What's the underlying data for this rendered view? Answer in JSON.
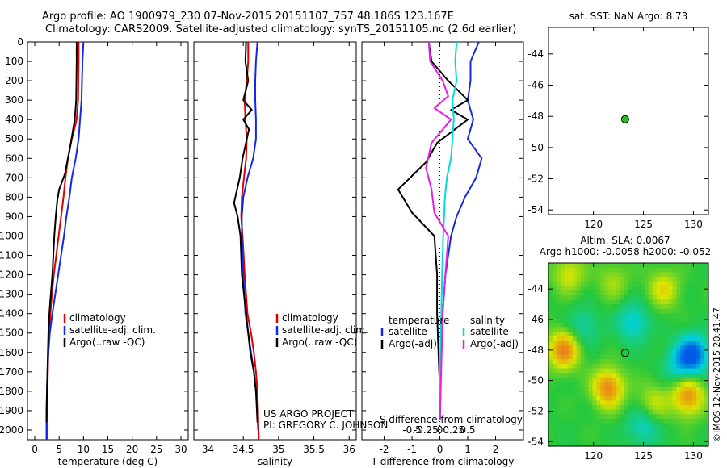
{
  "header": {
    "line1": "Argo profile: AO 1900979_230 07-Nov-2015 20151107_757 48.186S 123.167E",
    "line2": "Climatology: CARS2009. Satellite-adjusted climatology: synTS_20151105.nc (2.6d earlier)"
  },
  "colors": {
    "climatology": "#e00000",
    "satellite": "#1428e6",
    "argo": "#000000",
    "salinity_sat": "#00dcdc",
    "salinity_argo": "#e61ee6",
    "float_marker": "#22c422"
  },
  "chart_data": [
    {
      "type": "line",
      "name": "temperature-profile",
      "xlabel": "temperature (deg C)",
      "ylabel": "",
      "xlim": [
        -1.5,
        31.5
      ],
      "ylim": [
        2050,
        0
      ],
      "xticks": [
        0,
        5,
        10,
        15,
        20,
        25,
        30
      ],
      "yticks": [
        0,
        100,
        200,
        300,
        400,
        500,
        600,
        700,
        800,
        900,
        1000,
        1100,
        1200,
        1300,
        1400,
        1500,
        1600,
        1700,
        1800,
        1900,
        2000
      ],
      "legend": [
        "climatology",
        "satellite-adj. clim.",
        "Argo(..raw -QC)"
      ],
      "series": [
        {
          "name": "climatology",
          "color": "#e00000",
          "x": [
            9.0,
            9.0,
            8.9,
            8.6,
            7.6,
            6.8,
            6.3,
            5.9,
            5.4,
            4.9,
            4.4,
            3.9,
            3.5,
            3.2,
            3.0,
            2.8,
            2.7,
            2.6,
            2.5,
            2.5
          ],
          "y": [
            0,
            100,
            300,
            400,
            500,
            600,
            700,
            800,
            900,
            1000,
            1100,
            1200,
            1300,
            1400,
            1500,
            1600,
            1700,
            1800,
            1900,
            2050
          ]
        },
        {
          "name": "satellite-adj. clim.",
          "color": "#1428e6",
          "x": [
            10.0,
            9.8,
            9.6,
            9.3,
            9.0,
            8.4,
            7.6,
            7.1,
            6.5,
            6.0,
            5.4,
            4.8,
            4.2,
            3.6,
            3.1,
            2.8,
            2.6,
            2.5,
            2.4,
            2.4
          ],
          "y": [
            0,
            100,
            300,
            400,
            500,
            600,
            700,
            800,
            900,
            1000,
            1100,
            1200,
            1300,
            1400,
            1500,
            1600,
            1700,
            1800,
            1900,
            2050
          ]
        },
        {
          "name": "Argo(..raw -QC)",
          "color": "#000000",
          "x": [
            8.6,
            8.6,
            8.5,
            8.2,
            7.4,
            6.2,
            5.0,
            4.6,
            4.3,
            4.0,
            3.8,
            3.6,
            3.3,
            3.0,
            2.8,
            2.7,
            2.6,
            2.5,
            2.4
          ],
          "y": [
            0,
            100,
            300,
            400,
            520,
            680,
            760,
            820,
            900,
            1000,
            1100,
            1200,
            1300,
            1400,
            1500,
            1600,
            1700,
            1800,
            1960
          ]
        }
      ]
    },
    {
      "type": "line",
      "name": "salinity-profile",
      "xlabel": "salinity",
      "ylabel": "",
      "xlim": [
        33.8,
        36.1
      ],
      "ylim": [
        2050,
        0
      ],
      "xticks": [
        34,
        34.5,
        35,
        35.5,
        36
      ],
      "legend": [
        "climatology",
        "satellite-adj. clim.",
        "Argo(..raw -QC)"
      ],
      "series": [
        {
          "name": "climatology",
          "color": "#e00000",
          "x": [
            34.57,
            34.57,
            34.55,
            34.52,
            34.53,
            34.55,
            34.54,
            34.51,
            34.48,
            34.47,
            34.49,
            34.52,
            34.56,
            34.61,
            34.65,
            34.68,
            34.7,
            34.71,
            34.72
          ],
          "y": [
            0,
            100,
            200,
            300,
            400,
            500,
            600,
            700,
            800,
            900,
            1000,
            1200,
            1400,
            1500,
            1600,
            1700,
            1800,
            1900,
            2050
          ]
        },
        {
          "name": "satellite-adj. clim.",
          "color": "#1428e6",
          "x": [
            34.7,
            34.68,
            34.67,
            34.67,
            34.68,
            34.68,
            34.64,
            34.56,
            34.5,
            34.48,
            34.48,
            34.5,
            34.53,
            34.57,
            34.61,
            34.65,
            34.68,
            34.7,
            34.71
          ],
          "y": [
            0,
            100,
            200,
            300,
            400,
            500,
            600,
            700,
            800,
            900,
            1000,
            1200,
            1400,
            1500,
            1600,
            1700,
            1800,
            1900,
            2000
          ]
        },
        {
          "name": "Argo(..raw -QC)",
          "color": "#000000",
          "x": [
            34.54,
            34.53,
            34.57,
            34.5,
            34.62,
            34.5,
            34.58,
            34.49,
            34.45,
            34.4,
            34.37,
            34.42,
            34.46,
            34.48,
            34.54,
            34.6,
            34.65,
            34.68,
            34.7
          ],
          "y": [
            0,
            100,
            200,
            300,
            350,
            400,
            450,
            600,
            700,
            780,
            830,
            900,
            1000,
            1200,
            1400,
            1600,
            1700,
            1800,
            1960
          ]
        }
      ]
    },
    {
      "type": "line",
      "name": "difference-profile",
      "xlabel": "T difference from climatology",
      "xlabel_top": "S difference from climatology",
      "xlim": [
        -2.8,
        3.0
      ],
      "ylim": [
        2050,
        0
      ],
      "xticks": [
        -2,
        -1,
        0,
        1,
        2
      ],
      "s_ticks": [
        "-0.5",
        "-0.25",
        "0",
        "0.25",
        "0.5"
      ],
      "legend_left_title": "temperature",
      "legend_right_title": "salinity",
      "legend": [
        "satellite",
        "Argo(-adj)",
        "satellite",
        "Argo(-adj)"
      ],
      "series": [
        {
          "name": "satellite",
          "quantity": "temperature",
          "color": "#1428e6",
          "x": [
            1.4,
            1.1,
            1.1,
            1.0,
            1.2,
            1.0,
            1.5,
            1.3,
            0.9,
            0.6,
            0.4,
            0.2,
            0.1,
            0.05,
            0.02,
            0.0
          ],
          "y": [
            0,
            100,
            200,
            300,
            400,
            500,
            600,
            700,
            800,
            900,
            1000,
            1200,
            1400,
            1600,
            1800,
            1950
          ]
        },
        {
          "name": "Argo(-adj)",
          "quantity": "temperature",
          "color": "#000000",
          "x": [
            -0.4,
            -0.3,
            0.3,
            1.0,
            0.4,
            1.0,
            -0.1,
            -0.5,
            -1.5,
            -1.0,
            -0.2,
            -0.1,
            -0.1,
            -0.05,
            0.0,
            0.0
          ],
          "y": [
            0,
            100,
            200,
            300,
            350,
            400,
            520,
            620,
            760,
            880,
            1000,
            1200,
            1400,
            1600,
            1800,
            1950
          ]
        },
        {
          "name": "satellite",
          "quantity": "salinity",
          "color": "#00dcdc",
          "x": [
            0.6,
            0.55,
            0.6,
            0.45,
            0.5,
            0.4,
            0.25,
            0.18,
            0.12,
            0.08,
            0.05,
            0.02,
            0.0
          ],
          "y": [
            0,
            100,
            200,
            300,
            400,
            600,
            700,
            800,
            1000,
            1200,
            1400,
            1600,
            1950
          ]
        },
        {
          "name": "Argo(-adj)",
          "quantity": "salinity",
          "color": "#e61ee6",
          "x": [
            -0.4,
            -0.35,
            0.1,
            0.3,
            -0.2,
            0.4,
            -0.3,
            -0.5,
            -0.3,
            -0.2,
            0.3,
            0.2,
            0.1,
            0.0
          ],
          "y": [
            0,
            100,
            200,
            280,
            340,
            400,
            520,
            650,
            760,
            880,
            1000,
            1200,
            1400,
            1950
          ]
        }
      ]
    },
    {
      "type": "scatter",
      "name": "sst-map",
      "title": "sat. SST: NaN Argo: 8.73",
      "xlim": [
        115.5,
        131.5
      ],
      "ylim": [
        -54.3,
        -42.3
      ],
      "xticks": [
        120,
        125,
        130
      ],
      "yticks": [
        -44,
        -46,
        -48,
        -50,
        -52,
        -54
      ],
      "points": [
        {
          "x": 123.167,
          "y": -48.186
        }
      ]
    },
    {
      "type": "heatmap",
      "name": "sla-map",
      "title_line1": "Altim. SLA: 0.0067",
      "title_line2": "Argo h1000: -0.0058 h2000: -0.052",
      "xlim": [
        115.5,
        131.5
      ],
      "ylim": [
        -54.3,
        -42.3
      ],
      "xticks": [
        120,
        125,
        130
      ],
      "yticks": [
        -44,
        -46,
        -48,
        -50,
        -52,
        -54
      ],
      "points": [
        {
          "x": 123.167,
          "y": -48.186
        }
      ],
      "blobs": [
        {
          "x": 117.0,
          "y": -48.0,
          "v": 0.9
        },
        {
          "x": 121.5,
          "y": -50.5,
          "v": 0.9
        },
        {
          "x": 127.0,
          "y": -44.0,
          "v": 0.5
        },
        {
          "x": 129.5,
          "y": -51.0,
          "v": 0.85
        },
        {
          "x": 124.0,
          "y": -46.2,
          "v": -0.5
        },
        {
          "x": 130.0,
          "y": -48.3,
          "v": -1.0
        },
        {
          "x": 119.0,
          "y": -46.5,
          "v": -0.35
        },
        {
          "x": 125.0,
          "y": -53.0,
          "v": -0.45
        },
        {
          "x": 117.5,
          "y": -43.0,
          "v": 0.45
        },
        {
          "x": 128.5,
          "y": -49.0,
          "v": -0.4
        },
        {
          "x": 122.0,
          "y": -43.5,
          "v": 0.3
        },
        {
          "x": 126.0,
          "y": -51.5,
          "v": 0.4
        }
      ]
    }
  ],
  "footer": {
    "project": "US ARGO PROJECT",
    "pi": "PI: GREGORY C. JOHNSON",
    "credit": "©IMOS 12-Nov-2015 20:41:47"
  }
}
